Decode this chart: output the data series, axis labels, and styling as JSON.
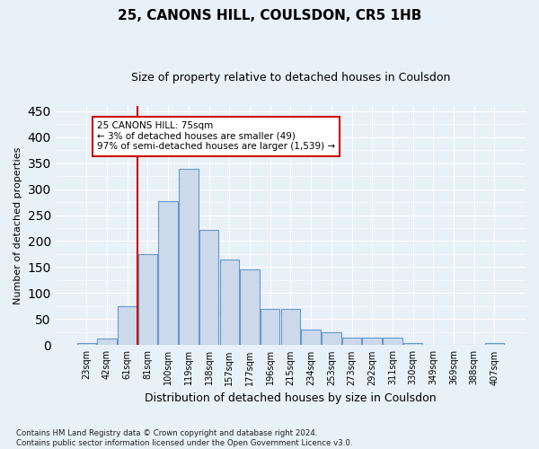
{
  "title": "25, CANONS HILL, COULSDON, CR5 1HB",
  "subtitle": "Size of property relative to detached houses in Coulsdon",
  "xlabel": "Distribution of detached houses by size in Coulsdon",
  "ylabel": "Number of detached properties",
  "bar_labels": [
    "23sqm",
    "42sqm",
    "61sqm",
    "81sqm",
    "100sqm",
    "119sqm",
    "138sqm",
    "157sqm",
    "177sqm",
    "196sqm",
    "215sqm",
    "234sqm",
    "253sqm",
    "273sqm",
    "292sqm",
    "311sqm",
    "330sqm",
    "349sqm",
    "369sqm",
    "388sqm",
    "407sqm"
  ],
  "bar_values": [
    5,
    12,
    75,
    175,
    277,
    338,
    222,
    165,
    145,
    70,
    70,
    30,
    25,
    15,
    15,
    15,
    5,
    0,
    0,
    0,
    5
  ],
  "bar_color": "#ccd9ea",
  "bar_edge_color": "#6699cc",
  "vline_position": 3,
  "vline_color": "#cc0000",
  "annotation_text": "25 CANONS HILL: 75sqm\n← 3% of detached houses are smaller (49)\n97% of semi-detached houses are larger (1,539) →",
  "annotation_box_color": "#ffffff",
  "annotation_box_edge": "#cc0000",
  "ylim": [
    0,
    460
  ],
  "yticks": [
    0,
    50,
    100,
    150,
    200,
    250,
    300,
    350,
    400,
    450
  ],
  "footnote": "Contains HM Land Registry data © Crown copyright and database right 2024.\nContains public sector information licensed under the Open Government Licence v3.0.",
  "bg_color": "#e8f0f8",
  "plot_bg_color": "#e8f0f8",
  "title_fontsize": 11,
  "subtitle_fontsize": 9,
  "ylabel_fontsize": 8,
  "xlabel_fontsize": 9,
  "tick_fontsize": 7,
  "annot_fontsize": 7.5
}
